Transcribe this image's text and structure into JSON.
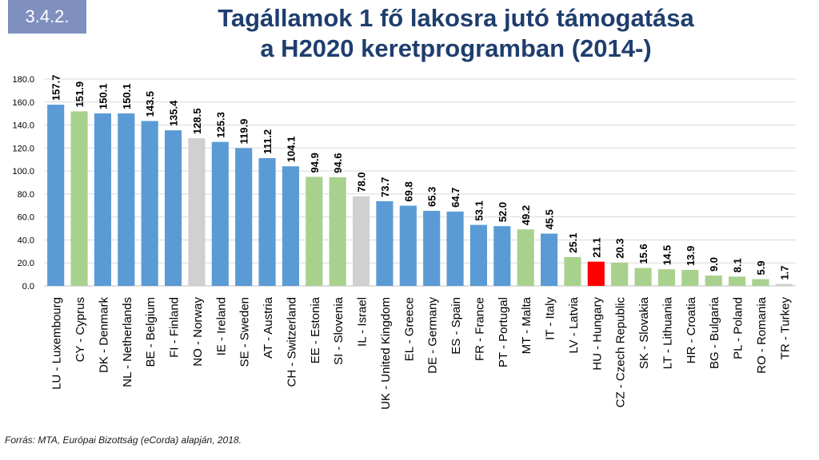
{
  "badge": "3.4.2.",
  "title_line1": "Tagállamok 1 fő lakosra jutó támogatása",
  "title_line2": "a H2020 keretprogramban (2014-)",
  "source": "Forrás: MTA, Európai Bizottság (eCorda) alapján, 2018.",
  "colors": {
    "eu": "#5b9bd5",
    "associated": "#a9d18e",
    "non_eu": "#d0d0d0",
    "highlight": "#ff0000"
  },
  "chart_data": {
    "type": "bar",
    "title": "Tagállamok 1 fő lakosra jutó támogatása a H2020 keretprogramban (2014-)",
    "xlabel": "",
    "ylabel": "",
    "ylim": [
      0,
      180
    ],
    "yticks": [
      "0.0",
      "20.0",
      "40.0",
      "60.0",
      "80.0",
      "100.0",
      "120.0",
      "140.0",
      "160.0",
      "180.0"
    ],
    "grid": true,
    "categories": [
      "LU - Luxembourg",
      "CY - Cyprus",
      "DK - Denmark",
      "NL - Netherlands",
      "BE - Belgium",
      "FI - Finland",
      "NO - Norway",
      "IE - Ireland",
      "SE - Sweden",
      "AT - Austria",
      "CH - Switzerland",
      "EE - Estonia",
      "SI - Slovenia",
      "IL - Israel",
      "UK - United Kingdom",
      "EL - Greece",
      "DE - Germany",
      "ES - Spain",
      "FR - France",
      "PT - Portugal",
      "MT - Malta",
      "IT - Italy",
      "LV - Latvia",
      "HU - Hungary",
      "CZ - Czech Republic",
      "SK - Slovakia",
      "LT - Lithuania",
      "HR - Croatia",
      "BG - Bulgaria",
      "PL - Poland",
      "RO - Romania",
      "TR - Turkey"
    ],
    "values": [
      157.7,
      151.9,
      150.1,
      150.1,
      143.5,
      135.4,
      128.5,
      125.3,
      119.9,
      111.2,
      104.1,
      94.9,
      94.6,
      78.0,
      73.7,
      69.8,
      65.3,
      64.7,
      53.1,
      52.0,
      49.2,
      45.5,
      25.1,
      21.1,
      20.3,
      15.6,
      14.5,
      13.9,
      9.0,
      8.1,
      5.9,
      1.7
    ],
    "value_labels": [
      "157.7",
      "151.9",
      "150.1",
      "150.1",
      "143.5",
      "135.4",
      "128.5",
      "125.3",
      "119.9",
      "111.2",
      "104.1",
      "94.9",
      "94.6",
      "78.0",
      "73.7",
      "69.8",
      "65.3",
      "64.7",
      "53.1",
      "52.0",
      "49.2",
      "45.5",
      "25.1",
      "21.1",
      "20.3",
      "15.6",
      "14.5",
      "13.9",
      "9.0",
      "8.1",
      "5.9",
      "1.7"
    ],
    "bar_groups": [
      "eu",
      "associated",
      "eu",
      "eu",
      "eu",
      "eu",
      "non_eu",
      "eu",
      "eu",
      "eu",
      "eu",
      "associated",
      "associated",
      "non_eu",
      "eu",
      "eu",
      "eu",
      "eu",
      "eu",
      "eu",
      "associated",
      "eu",
      "associated",
      "highlight",
      "associated",
      "associated",
      "associated",
      "associated",
      "associated",
      "associated",
      "associated",
      "non_eu"
    ]
  }
}
